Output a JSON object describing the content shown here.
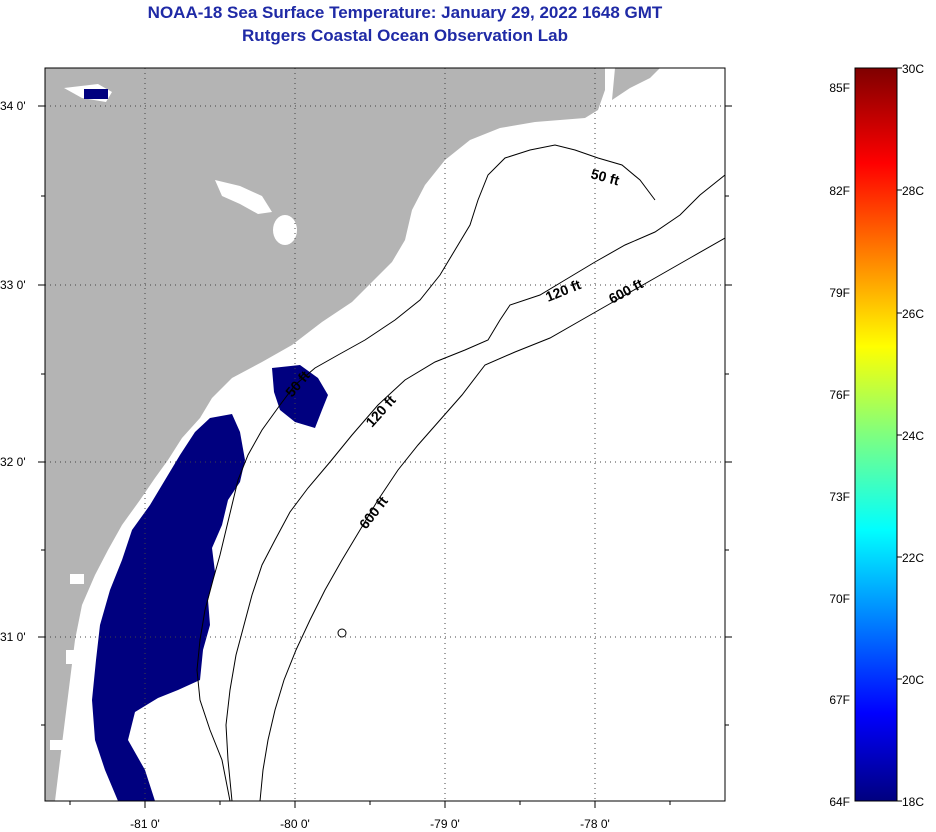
{
  "header": {
    "title": "NOAA-18 Sea Surface Temperature:  January 29, 2022 1648 GMT",
    "subtitle": "Rutgers Coastal Ocean Observation Lab"
  },
  "map": {
    "lat_ticks": [
      {
        "value": 34,
        "label": "34 0'"
      },
      {
        "value": 33,
        "label": "33 0'"
      },
      {
        "value": 32,
        "label": "32 0'"
      },
      {
        "value": 31,
        "label": "31 0'"
      }
    ],
    "lon_ticks": [
      {
        "value": -81,
        "label": "-81 0'"
      },
      {
        "value": -80,
        "label": "-80 0'"
      },
      {
        "value": -79,
        "label": "-79 0'"
      },
      {
        "value": -78,
        "label": "-78 0'"
      }
    ],
    "contour_labels": [
      {
        "id": "50ft-north",
        "text": "50 ft"
      },
      {
        "id": "120ft-north",
        "text": "120 ft"
      },
      {
        "id": "600ft-north",
        "text": "600 ft"
      },
      {
        "id": "50ft-south",
        "text": "50 ft"
      },
      {
        "id": "120ft-south",
        "text": "120 ft"
      },
      {
        "id": "600ft-south",
        "text": "600 ft"
      }
    ],
    "colors": {
      "land": "#b4b4b4",
      "water": "#ffffff",
      "sst_cold": "#00007f",
      "title": "#1f2aa6"
    }
  },
  "colorbar": {
    "fahrenheit_labels": [
      "85F",
      "82F",
      "79F",
      "76F",
      "73F",
      "70F",
      "67F",
      "64F"
    ],
    "celsius_labels": [
      "30C",
      "28C",
      "26C",
      "24C",
      "22C",
      "20C",
      "18C"
    ]
  }
}
